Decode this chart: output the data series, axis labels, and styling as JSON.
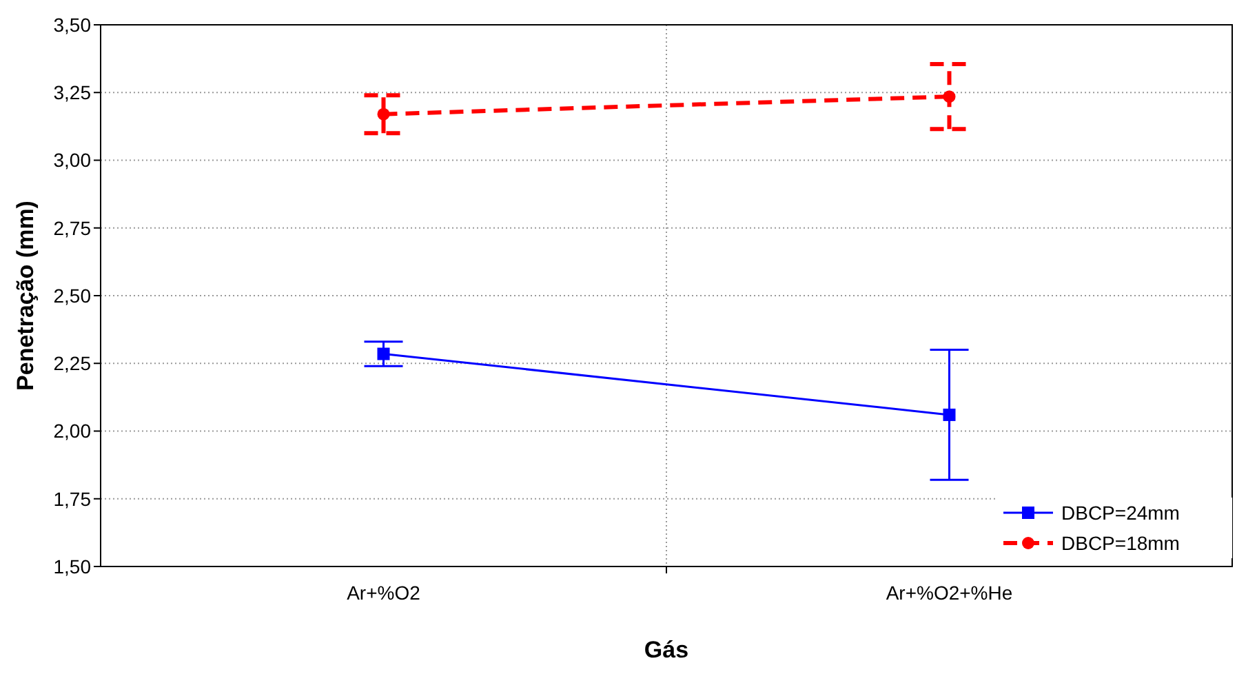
{
  "chart_data": {
    "type": "line",
    "xlabel": "Gás",
    "ylabel": "Penetração (mm)",
    "categories": [
      "Ar+%O2",
      "Ar+%O2+%He"
    ],
    "series": [
      {
        "name": "DBCP=24mm",
        "color": "#0000ff",
        "values": [
          2.285,
          2.06
        ],
        "errors": [
          0.045,
          0.24
        ],
        "marker": "square",
        "line_style": "solid"
      },
      {
        "name": "DBCP=18mm",
        "color": "#ff0000",
        "values": [
          3.17,
          3.235
        ],
        "errors": [
          0.07,
          0.12
        ],
        "marker": "circle",
        "line_style": "dashed"
      }
    ],
    "ylim": [
      1.5,
      3.5
    ],
    "yticks": [
      {
        "value": 1.5,
        "label": "1,50"
      },
      {
        "value": 1.75,
        "label": "1,75"
      },
      {
        "value": 2,
        "label": "2,00"
      },
      {
        "value": 2.25,
        "label": "2,25"
      },
      {
        "value": 2.5,
        "label": "2,50"
      },
      {
        "value": 2.75,
        "label": "2,75"
      },
      {
        "value": 3,
        "label": "3,00"
      },
      {
        "value": 3.25,
        "label": "3,25"
      },
      {
        "value": 3.5,
        "label": "3,50"
      }
    ],
    "grid": true,
    "legend": "bottom right"
  }
}
